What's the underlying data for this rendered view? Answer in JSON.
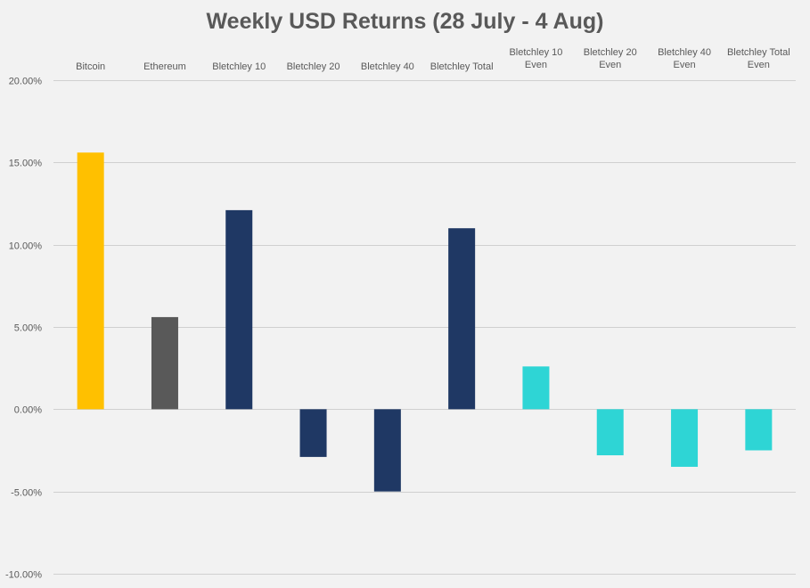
{
  "chart_data": {
    "type": "bar",
    "title": "Weekly USD Returns (28 July - 4 Aug)",
    "xlabel": "",
    "ylabel": "",
    "ylim": [
      -0.1,
      0.2
    ],
    "y_ticks": [
      0.2,
      0.15,
      0.1,
      0.05,
      0.0,
      -0.05,
      -0.1
    ],
    "y_tick_labels": [
      "20.00%",
      "15.00%",
      "10.00%",
      "5.00%",
      "0.00%",
      "-5.00%",
      "-10.00%"
    ],
    "category_axis_position": "top",
    "grid": true,
    "legend": false,
    "categories": [
      [
        "Bitcoin"
      ],
      [
        "Ethereum"
      ],
      [
        "Bletchley 10"
      ],
      [
        "Bletchley 20"
      ],
      [
        "Bletchley 40"
      ],
      [
        "Bletchley Total"
      ],
      [
        "Bletchley 10",
        "Even"
      ],
      [
        "Bletchley 20",
        "Even"
      ],
      [
        "Bletchley 40",
        "Even"
      ],
      [
        "Bletchley Total",
        "Even"
      ]
    ],
    "values": [
      0.156,
      0.056,
      0.121,
      -0.029,
      -0.05,
      0.11,
      0.026,
      -0.028,
      -0.035,
      -0.025
    ],
    "colors": [
      "#ffc000",
      "#595959",
      "#1f3864",
      "#1f3864",
      "#1f3864",
      "#1f3864",
      "#2ed5d5",
      "#2ed5d5",
      "#2ed5d5",
      "#2ed5d5"
    ]
  }
}
